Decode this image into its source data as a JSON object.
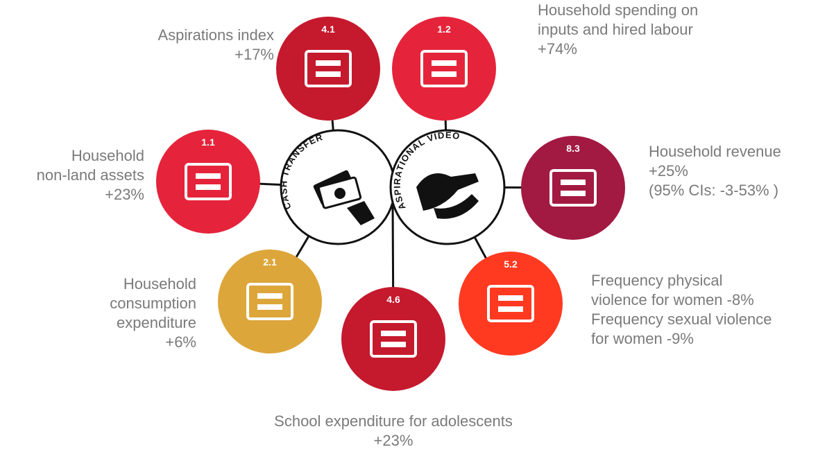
{
  "center": {
    "left": "CASH TRANSFER",
    "right": "ASPIRATIONAL VIDEO"
  },
  "nodes": [
    {
      "code": "4.1",
      "label": [
        "Aspirations index"
      ],
      "effect": "+17%"
    },
    {
      "code": "1.2",
      "label": [
        "Household spending on",
        "inputs and hired labour"
      ],
      "effect": "+74%"
    },
    {
      "code": "1.1",
      "label": [
        "Household",
        "non-land assets"
      ],
      "effect": "+23%"
    },
    {
      "code": "8.3",
      "label": [
        "Household revenue"
      ],
      "effect": "+25%",
      "note": "(95% CIs: -3-53% )"
    },
    {
      "code": "2.1",
      "label": [
        "Household",
        "consumption",
        "expenditure"
      ],
      "effect": "+6%"
    },
    {
      "code": "4.6",
      "label": [
        "School expenditure for adolescents"
      ],
      "effect": "+23%"
    },
    {
      "code": "5.2",
      "label": [
        "Frequency physical",
        "violence for women -8%",
        "Frequency sexual violence",
        "for women -9%"
      ]
    }
  ]
}
